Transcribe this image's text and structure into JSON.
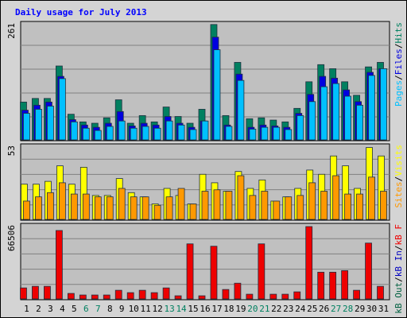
{
  "chart_data": [
    {
      "type": "bar",
      "title": "Daily usage for July 2013",
      "ylim": [
        0,
        261
      ],
      "yticks": [
        261
      ],
      "legend_separator": "/",
      "series": [
        {
          "name": "Hits",
          "color": "#008060",
          "values": [
            84,
            92,
            92,
            164,
            57,
            40,
            37,
            49,
            89,
            37,
            54,
            40,
            73,
            52,
            37,
            68,
            256,
            54,
            172,
            47,
            49,
            44,
            40,
            70,
            129,
            167,
            158,
            129,
            99,
            162,
            172
          ]
        },
        {
          "name": "Files",
          "color": "#0000e0",
          "values": [
            66,
            77,
            84,
            141,
            45,
            33,
            28,
            37,
            63,
            31,
            37,
            33,
            52,
            37,
            28,
            42,
            228,
            33,
            146,
            28,
            33,
            31,
            28,
            59,
            101,
            141,
            137,
            111,
            85,
            150,
            158
          ]
        },
        {
          "name": "Pages",
          "color": "#00c0ff",
          "values": [
            59,
            68,
            75,
            136,
            40,
            26,
            21,
            30,
            42,
            26,
            30,
            26,
            42,
            33,
            23,
            42,
            200,
            30,
            132,
            24,
            28,
            28,
            23,
            54,
            85,
            118,
            125,
            97,
            77,
            143,
            158
          ]
        }
      ]
    },
    {
      "type": "bar",
      "ylim": [
        0,
        53
      ],
      "yticks": [
        53
      ],
      "legend_separator": "/",
      "series": [
        {
          "name": "Visits",
          "color": "#ffff00",
          "values": [
            25,
            25,
            27,
            38,
            25,
            37,
            17,
            17,
            29,
            19,
            16,
            11,
            22,
            17,
            11,
            32,
            26,
            20,
            34,
            22,
            28,
            13,
            16,
            22,
            35,
            32,
            45,
            38,
            22,
            51,
            45
          ]
        },
        {
          "name": "Sites",
          "color": "#ff9900",
          "values": [
            13,
            16,
            19,
            26,
            18,
            18,
            16,
            16,
            22,
            16,
            16,
            10,
            16,
            22,
            11,
            20,
            21,
            20,
            31,
            17,
            20,
            13,
            16,
            17,
            26,
            20,
            31,
            18,
            18,
            30,
            20
          ]
        }
      ]
    },
    {
      "type": "bar",
      "ylim": [
        0,
        66506
      ],
      "yticks": [
        66506
      ],
      "legend_separator": "/",
      "categories": [
        "1",
        "2",
        "3",
        "4",
        "5",
        "6",
        "7",
        "8",
        "9",
        "10",
        "11",
        "12",
        "13",
        "14",
        "15",
        "16",
        "17",
        "18",
        "19",
        "20",
        "21",
        "22",
        "23",
        "24",
        "25",
        "26",
        "27",
        "28",
        "29",
        "30",
        "31"
      ],
      "category_colors": [
        "#000000",
        "#000000",
        "#000000",
        "#000000",
        "#000000",
        "#008060",
        "#008060",
        "#000000",
        "#000000",
        "#000000",
        "#000000",
        "#000000",
        "#008060",
        "#008060",
        "#000000",
        "#000000",
        "#000000",
        "#000000",
        "#000000",
        "#008060",
        "#008060",
        "#000000",
        "#000000",
        "#000000",
        "#000000",
        "#000000",
        "#008060",
        "#008060",
        "#000000",
        "#000000",
        "#000000"
      ],
      "series": [
        {
          "name": "kB F",
          "color": "#ee0000",
          "values": [
            9800,
            11200,
            11200,
            60900,
            4900,
            3500,
            3500,
            3500,
            7700,
            5600,
            7700,
            5600,
            9800,
            2800,
            49000,
            2800,
            46900,
            8400,
            14000,
            4200,
            49000,
            4200,
            4200,
            6300,
            64400,
            23800,
            23800,
            25200,
            7700,
            49700,
            11200
          ]
        },
        {
          "name": "kB In",
          "color": "#0000c0",
          "values": [
            0,
            0,
            0,
            0,
            0,
            0,
            0,
            0,
            0,
            0,
            0,
            0,
            0,
            0,
            0,
            0,
            0,
            0,
            0,
            0,
            0,
            0,
            0,
            0,
            0,
            0,
            0,
            0,
            0,
            0,
            0
          ]
        },
        {
          "name": "kB Out",
          "color": "#006040",
          "values": [
            0,
            0,
            0,
            0,
            0,
            0,
            0,
            0,
            0,
            0,
            0,
            0,
            0,
            0,
            0,
            0,
            0,
            0,
            0,
            0,
            0,
            0,
            0,
            0,
            0,
            0,
            0,
            0,
            0,
            0,
            0
          ]
        }
      ]
    }
  ]
}
